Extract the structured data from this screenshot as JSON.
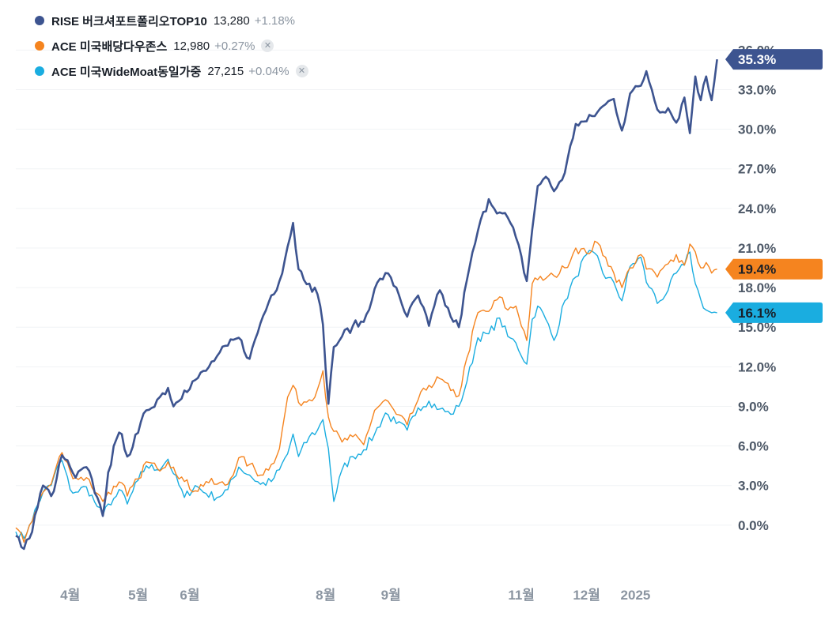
{
  "legend": [
    {
      "name": "RISE 버크셔포트폴리오TOP10",
      "price": "13,280",
      "change": "+1.18%",
      "color": "#3d5490",
      "closable": false
    },
    {
      "name": "ACE 미국배당다우존스",
      "price": "12,980",
      "change": "+0.27%",
      "color": "#f5841f",
      "closable": true
    },
    {
      "name": "ACE 미국WideMoat동일가중",
      "price": "27,215",
      "change": "+0.04%",
      "color": "#1aade0",
      "closable": true
    }
  ],
  "icons": {
    "close": "close-icon"
  },
  "colors": {
    "grid": "#f1f3f5",
    "axis_text": "#4e5968",
    "x_text": "#8b95a1"
  },
  "chart_data": {
    "type": "line",
    "y_unit": "%",
    "ylim": [
      -3,
      36.8
    ],
    "y_ticks": [
      "36.0%",
      "33.0%",
      "30.0%",
      "27.0%",
      "24.0%",
      "21.0%",
      "18.0%",
      "15.0%",
      "12.0%",
      "9.0%",
      "6.0%",
      "3.0%",
      "0.0%"
    ],
    "x_labels": [
      "4월",
      "5월",
      "6월",
      "8월",
      "9월",
      "11월",
      "12월",
      "2025"
    ],
    "x_label_index": [
      20,
      45,
      64,
      114,
      138,
      186,
      210,
      228
    ],
    "x_count": 260,
    "grid": true,
    "series": [
      {
        "name": "RISE 버크셔포트폴리오TOP10",
        "color": "#3d5490",
        "last_label": "35.3%",
        "points": [
          [
            0,
            -0.8
          ],
          [
            3,
            -1.8
          ],
          [
            5,
            -1.0
          ],
          [
            10,
            3.0
          ],
          [
            13,
            2.2
          ],
          [
            15,
            3.5
          ],
          [
            17,
            5.3
          ],
          [
            20,
            4.4
          ],
          [
            22,
            3.6
          ],
          [
            26,
            4.4
          ],
          [
            30,
            2.1
          ],
          [
            32,
            0.7
          ],
          [
            34,
            4.0
          ],
          [
            37,
            6.5
          ],
          [
            39,
            6.9
          ],
          [
            41,
            5.2
          ],
          [
            45,
            7.0
          ],
          [
            48,
            8.7
          ],
          [
            52,
            9.5
          ],
          [
            56,
            10.4
          ],
          [
            58,
            9.0
          ],
          [
            62,
            10.2
          ],
          [
            66,
            11.0
          ],
          [
            70,
            11.7
          ],
          [
            74,
            12.8
          ],
          [
            78,
            13.6
          ],
          [
            82,
            14.2
          ],
          [
            86,
            12.6
          ],
          [
            90,
            15.3
          ],
          [
            94,
            17.4
          ],
          [
            97,
            18.5
          ],
          [
            100,
            21.1
          ],
          [
            102,
            22.9
          ],
          [
            104,
            19.4
          ],
          [
            108,
            18.3
          ],
          [
            111,
            17.5
          ],
          [
            113,
            15.2
          ],
          [
            115,
            9.2
          ],
          [
            117,
            13.5
          ],
          [
            120,
            14.3
          ],
          [
            124,
            15.1
          ],
          [
            128,
            15.4
          ],
          [
            132,
            17.9
          ],
          [
            136,
            19.1
          ],
          [
            140,
            18.0
          ],
          [
            144,
            15.8
          ],
          [
            148,
            17.4
          ],
          [
            152,
            15.1
          ],
          [
            156,
            17.8
          ],
          [
            160,
            15.8
          ],
          [
            163,
            15.0
          ],
          [
            166,
            18.6
          ],
          [
            170,
            22.3
          ],
          [
            174,
            24.7
          ],
          [
            178,
            23.7
          ],
          [
            181,
            23.3
          ],
          [
            184,
            21.8
          ],
          [
            188,
            18.5
          ],
          [
            190,
            22.4
          ],
          [
            192,
            25.7
          ],
          [
            195,
            26.4
          ],
          [
            198,
            25.3
          ],
          [
            202,
            26.7
          ],
          [
            206,
            30.4
          ],
          [
            210,
            30.6
          ],
          [
            214,
            31.3
          ],
          [
            217,
            31.9
          ],
          [
            220,
            32.3
          ],
          [
            223,
            29.9
          ],
          [
            226,
            32.7
          ],
          [
            230,
            33.3
          ],
          [
            232,
            34.4
          ],
          [
            234,
            33.0
          ],
          [
            236,
            31.5
          ],
          [
            240,
            31.6
          ],
          [
            243,
            30.5
          ],
          [
            246,
            32.4
          ],
          [
            248,
            29.7
          ],
          [
            250,
            34.0
          ],
          [
            252,
            32.2
          ],
          [
            254,
            34.0
          ],
          [
            256,
            32.2
          ],
          [
            258,
            35.3
          ]
        ]
      },
      {
        "name": "ACE 미국배당다우존스",
        "color": "#f5841f",
        "last_label": "19.4%",
        "points": [
          [
            0,
            -0.2
          ],
          [
            3,
            -1.3
          ],
          [
            5,
            0.0
          ],
          [
            10,
            2.5
          ],
          [
            13,
            3.1
          ],
          [
            15,
            4.5
          ],
          [
            17,
            5.5
          ],
          [
            20,
            4.1
          ],
          [
            22,
            3.6
          ],
          [
            26,
            3.6
          ],
          [
            30,
            2.4
          ],
          [
            32,
            1.8
          ],
          [
            34,
            2.5
          ],
          [
            37,
            2.9
          ],
          [
            39,
            3.2
          ],
          [
            41,
            2.2
          ],
          [
            45,
            3.5
          ],
          [
            48,
            4.8
          ],
          [
            52,
            4.3
          ],
          [
            56,
            4.8
          ],
          [
            58,
            4.4
          ],
          [
            62,
            3.3
          ],
          [
            66,
            2.6
          ],
          [
            70,
            3.3
          ],
          [
            74,
            3.1
          ],
          [
            78,
            3.1
          ],
          [
            82,
            5.1
          ],
          [
            86,
            4.6
          ],
          [
            90,
            3.8
          ],
          [
            94,
            4.6
          ],
          [
            97,
            5.8
          ],
          [
            100,
            9.7
          ],
          [
            102,
            10.6
          ],
          [
            104,
            9.3
          ],
          [
            108,
            9.5
          ],
          [
            111,
            10.3
          ],
          [
            113,
            11.7
          ],
          [
            115,
            8.2
          ],
          [
            117,
            7.1
          ],
          [
            120,
            6.3
          ],
          [
            124,
            6.7
          ],
          [
            128,
            6.1
          ],
          [
            132,
            8.7
          ],
          [
            136,
            9.5
          ],
          [
            140,
            8.4
          ],
          [
            144,
            7.6
          ],
          [
            148,
            9.5
          ],
          [
            152,
            10.6
          ],
          [
            156,
            11.1
          ],
          [
            160,
            10.2
          ],
          [
            163,
            9.8
          ],
          [
            166,
            12.7
          ],
          [
            170,
            16.1
          ],
          [
            174,
            16.2
          ],
          [
            178,
            17.3
          ],
          [
            181,
            16.3
          ],
          [
            184,
            16.6
          ],
          [
            188,
            14.0
          ],
          [
            190,
            18.3
          ],
          [
            192,
            18.6
          ],
          [
            195,
            18.7
          ],
          [
            198,
            18.9
          ],
          [
            202,
            19.5
          ],
          [
            206,
            21.0
          ],
          [
            210,
            20.6
          ],
          [
            214,
            21.4
          ],
          [
            217,
            20.3
          ],
          [
            220,
            19.1
          ],
          [
            223,
            18.0
          ],
          [
            226,
            19.5
          ],
          [
            230,
            20.5
          ],
          [
            232,
            19.4
          ],
          [
            234,
            19.4
          ],
          [
            236,
            18.8
          ],
          [
            240,
            19.8
          ],
          [
            243,
            20.5
          ],
          [
            246,
            19.7
          ],
          [
            248,
            21.3
          ],
          [
            250,
            20.7
          ],
          [
            252,
            19.5
          ],
          [
            254,
            19.9
          ],
          [
            256,
            19.1
          ],
          [
            258,
            19.4
          ]
        ]
      },
      {
        "name": "ACE 미국WideMoat동일가중",
        "color": "#1aade0",
        "last_label": "16.1%",
        "points": [
          [
            0,
            -0.5
          ],
          [
            3,
            -1.0
          ],
          [
            5,
            0.0
          ],
          [
            10,
            2.5
          ],
          [
            13,
            3.0
          ],
          [
            15,
            4.3
          ],
          [
            17,
            4.9
          ],
          [
            20,
            2.7
          ],
          [
            22,
            2.5
          ],
          [
            26,
            2.9
          ],
          [
            30,
            1.4
          ],
          [
            32,
            0.7
          ],
          [
            34,
            1.6
          ],
          [
            37,
            2.2
          ],
          [
            39,
            2.6
          ],
          [
            41,
            1.6
          ],
          [
            45,
            3.4
          ],
          [
            48,
            4.5
          ],
          [
            52,
            4.2
          ],
          [
            56,
            5.0
          ],
          [
            58,
            3.9
          ],
          [
            62,
            2.1
          ],
          [
            66,
            3.0
          ],
          [
            70,
            2.4
          ],
          [
            74,
            2.1
          ],
          [
            78,
            2.7
          ],
          [
            82,
            4.4
          ],
          [
            86,
            3.8
          ],
          [
            90,
            3.1
          ],
          [
            94,
            3.3
          ],
          [
            97,
            4.2
          ],
          [
            100,
            5.4
          ],
          [
            102,
            6.9
          ],
          [
            104,
            5.2
          ],
          [
            108,
            6.7
          ],
          [
            111,
            7.2
          ],
          [
            113,
            8.0
          ],
          [
            115,
            5.8
          ],
          [
            117,
            1.8
          ],
          [
            120,
            4.2
          ],
          [
            124,
            5.2
          ],
          [
            128,
            5.7
          ],
          [
            132,
            6.9
          ],
          [
            136,
            8.5
          ],
          [
            140,
            7.7
          ],
          [
            144,
            7.2
          ],
          [
            148,
            8.9
          ],
          [
            152,
            9.4
          ],
          [
            156,
            8.8
          ],
          [
            160,
            8.4
          ],
          [
            163,
            9.0
          ],
          [
            166,
            10.9
          ],
          [
            170,
            14.2
          ],
          [
            174,
            14.5
          ],
          [
            178,
            15.7
          ],
          [
            181,
            14.3
          ],
          [
            184,
            13.8
          ],
          [
            188,
            12.2
          ],
          [
            190,
            15.6
          ],
          [
            192,
            16.6
          ],
          [
            195,
            15.6
          ],
          [
            198,
            14.0
          ],
          [
            202,
            17.0
          ],
          [
            206,
            18.8
          ],
          [
            210,
            20.5
          ],
          [
            214,
            20.4
          ],
          [
            217,
            18.7
          ],
          [
            220,
            18.4
          ],
          [
            223,
            17.0
          ],
          [
            226,
            19.6
          ],
          [
            230,
            20.3
          ],
          [
            232,
            18.4
          ],
          [
            234,
            17.9
          ],
          [
            236,
            16.8
          ],
          [
            240,
            17.8
          ],
          [
            243,
            19.1
          ],
          [
            246,
            19.7
          ],
          [
            248,
            20.7
          ],
          [
            250,
            18.3
          ],
          [
            252,
            17.1
          ],
          [
            254,
            16.3
          ],
          [
            256,
            16.1
          ],
          [
            258,
            16.1
          ]
        ]
      }
    ]
  }
}
